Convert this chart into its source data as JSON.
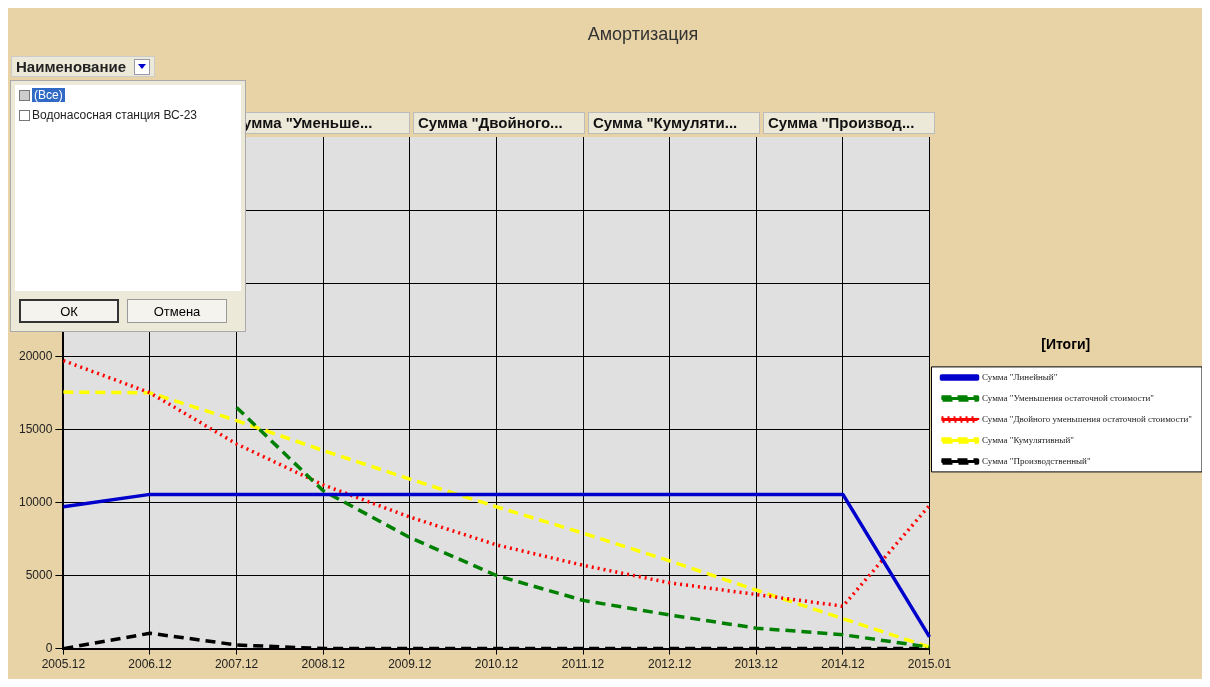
{
  "chart_data": {
    "type": "line",
    "title": "Амортизация",
    "legend_title": "[Итоги]",
    "legend": "right",
    "grid": true,
    "marker": "none",
    "categories": [
      "2005.12",
      "2006.12",
      "2007.12",
      "2008.12",
      "2009.12",
      "2010.12",
      "2011.12",
      "2012.12",
      "2013.12",
      "2014.12",
      "2015.01"
    ],
    "ylim": [
      0,
      35000
    ],
    "yticks": [
      0,
      5000,
      10000,
      15000,
      20000,
      {
        "value": 25000,
        "label": null
      },
      {
        "value": 30000,
        "label": null
      }
    ],
    "series": [
      {
        "name": "Сумма \"Линейный\"",
        "color": "#0000cc",
        "line_style": "solid",
        "values": [
          9700,
          10550,
          10550,
          10550,
          10550,
          10550,
          10550,
          10550,
          10550,
          10550,
          800
        ]
      },
      {
        "name": "Сумма \"Уменьшения остаточной стоимости\"",
        "color": "#008000",
        "line_style": "dashed",
        "values": [
          null,
          null,
          16500,
          10800,
          7600,
          5000,
          3300,
          2300,
          1400,
          950,
          100
        ]
      },
      {
        "name": "Сумма \"Двойного уменьшения остаточной стоимости\"",
        "color": "#ff0000",
        "line_style": "dotted",
        "values": [
          19700,
          17500,
          14000,
          11200,
          9000,
          7100,
          5700,
          4500,
          3700,
          2900,
          9800
        ]
      },
      {
        "name": "Сумма \"Кумулятивный\"",
        "color": "#ffff00",
        "line_style": "dashed",
        "values": [
          17550,
          17500,
          15600,
          13550,
          11600,
          9700,
          7900,
          6000,
          4000,
          2050,
          100
        ]
      },
      {
        "name": "Сумма \"Производственный\"",
        "color": "#000000",
        "line_style": "dashed",
        "values": [
          0,
          1050,
          250,
          0,
          0,
          0,
          0,
          0,
          0,
          0,
          0
        ]
      }
    ],
    "annotations": [
      "Наименование",
      "(Все)",
      "Водонасосная станция ВС-23",
      "ОК",
      "Отмена",
      "умма \"Уменьше...",
      "Сумма \"Двойного...",
      "Сумма \"Кумуляти...",
      "Сумма \"Производ..."
    ]
  }
}
